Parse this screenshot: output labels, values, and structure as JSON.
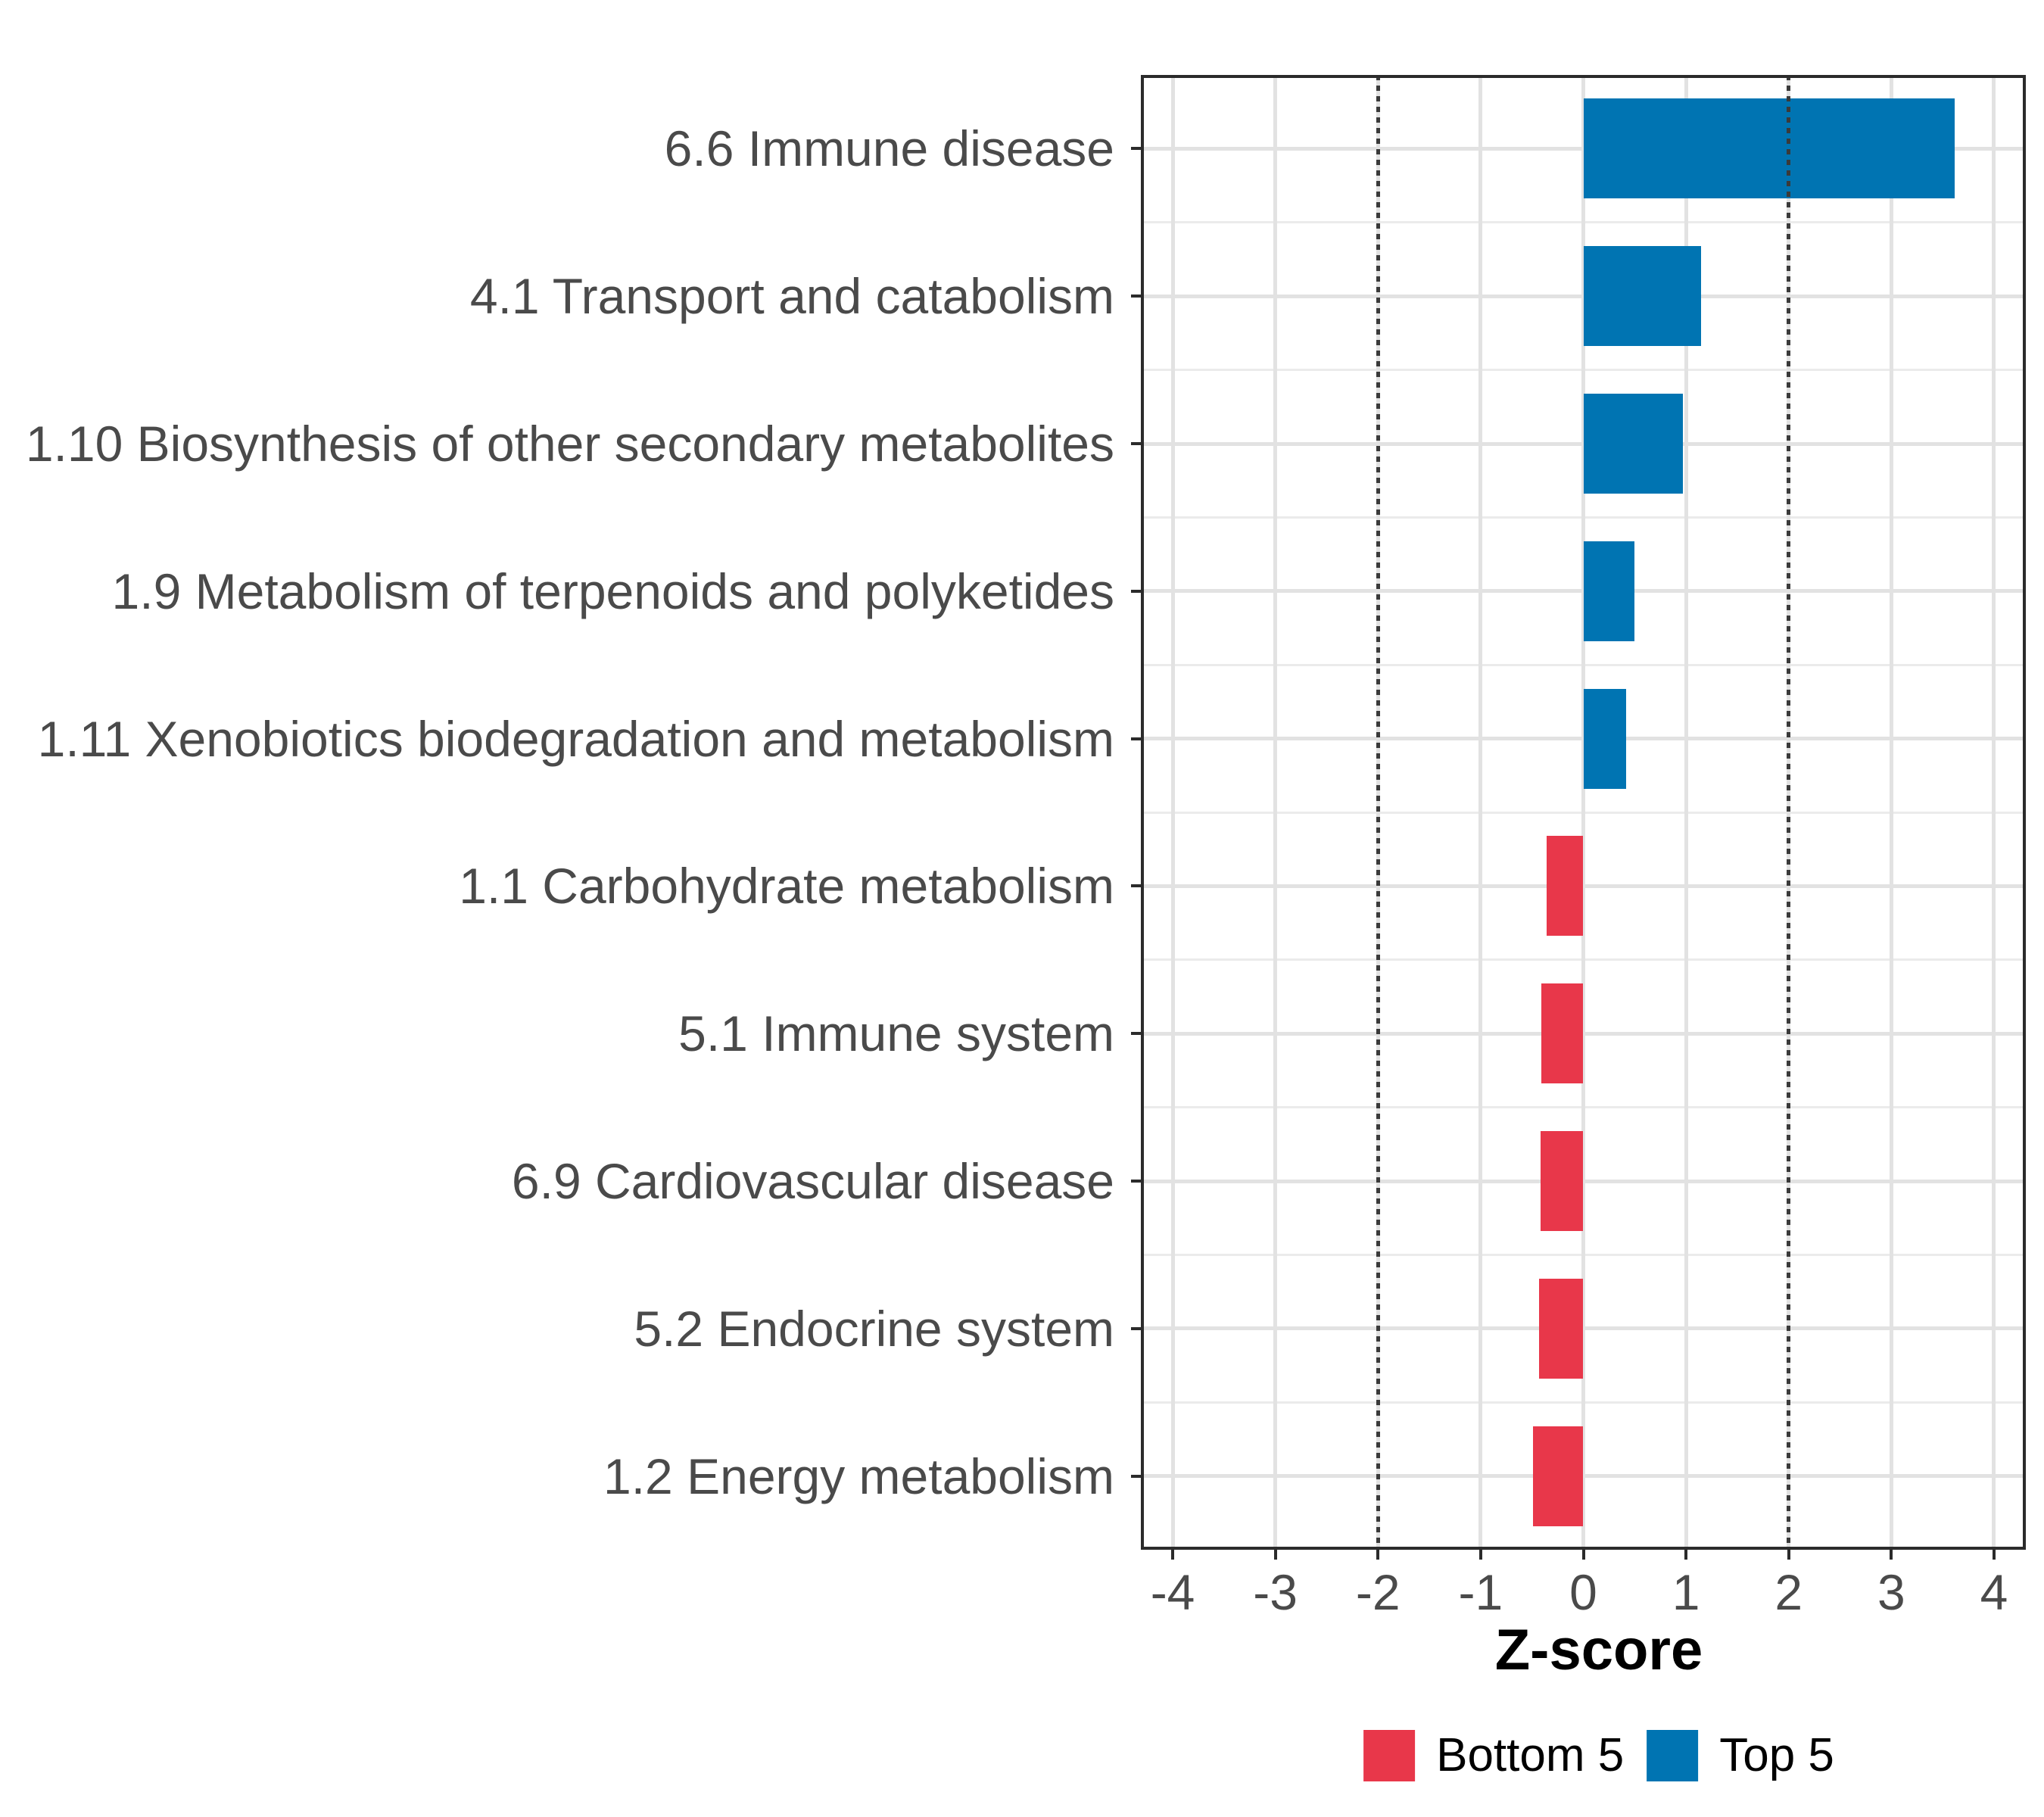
{
  "figure": {
    "background": "#ffffff"
  },
  "chart_data": {
    "type": "bar",
    "orientation": "horizontal",
    "title": "",
    "xlabel": "Z-score",
    "ylabel": "",
    "categories": [
      "6.6 Immune disease",
      "4.1 Transport and catabolism",
      "1.10 Biosynthesis of other secondary metabolites",
      "1.9 Metabolism of terpenoids and polyketides",
      "1.11 Xenobiotics biodegradation and metabolism",
      "1.1 Carbohydrate metabolism",
      "5.1 Immune system",
      "6.9 Cardiovascular disease",
      "5.2 Endocrine system",
      "1.2 Energy metabolism"
    ],
    "values": [
      3.62,
      1.15,
      0.97,
      0.5,
      0.42,
      -0.36,
      -0.41,
      -0.42,
      -0.43,
      -0.49
    ],
    "groups": [
      "Top 5",
      "Top 5",
      "Top 5",
      "Top 5",
      "Top 5",
      "Bottom 5",
      "Bottom 5",
      "Bottom 5",
      "Bottom 5",
      "Bottom 5"
    ],
    "group_colors": {
      "Top 5": "#0074B2",
      "Bottom 5": "#E8374A"
    },
    "xlim": [
      -4.31,
      4.31
    ],
    "xticks": [
      "-4",
      "-3",
      "-2",
      "-1",
      "0",
      "1",
      "2",
      "3",
      "4"
    ],
    "reference_lines": [
      -2,
      2
    ],
    "grid": true,
    "bar_width_fraction": 0.68,
    "legend_position": "bottom",
    "legend": [
      {
        "label": "Bottom 5",
        "color": "#E8374A"
      },
      {
        "label": "Top 5",
        "color": "#0074B2"
      }
    ]
  },
  "style": {
    "grid_major_color": "#e2e2e2",
    "grid_minor_color": "#ebebeb",
    "reference_line_color": "#3a3a3a",
    "panel_border_color": "#2b2b2b",
    "axis_text_color": "#4a4a4a",
    "axis_title_color": "#000000",
    "legend_text_color": "#000000"
  }
}
